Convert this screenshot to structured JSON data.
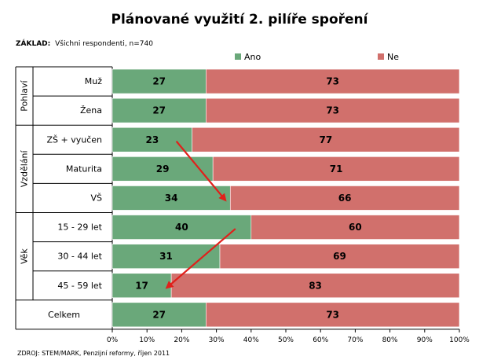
{
  "chart_data": {
    "type": "bar",
    "orientation": "horizontal",
    "stacked": "percent",
    "title": "Plánované využití 2. pilíře spoření",
    "basis": {
      "label": "ZÁKLAD:",
      "text": "Všichni respondenti, n=740"
    },
    "source": "ZDROJ: STEM/MARK, Penzijní reformy, říjen 2011",
    "categories": [
      "Muž",
      "Žena",
      "ZŠ + vyučen",
      "Maturita",
      "VŠ",
      "15 - 29 let",
      "30 - 44 let",
      "45 - 59 let",
      "Celkem"
    ],
    "groups": [
      {
        "label": "Pohlaví",
        "categories": [
          "Muž",
          "Žena"
        ]
      },
      {
        "label": "Vzdělání",
        "categories": [
          "ZŠ + vyučen",
          "Maturita",
          "VŠ"
        ]
      },
      {
        "label": "Věk",
        "categories": [
          "15 - 29 let",
          "30 - 44 let",
          "45 - 59 let"
        ]
      }
    ],
    "series": [
      {
        "name": "Ano",
        "values": [
          27,
          27,
          23,
          29,
          34,
          40,
          31,
          17,
          27
        ]
      },
      {
        "name": "Ne",
        "values": [
          73,
          73,
          77,
          71,
          66,
          60,
          69,
          83,
          73
        ]
      }
    ],
    "colors": {
      "Ano": "#6aa87a",
      "Ne": "#d1706c"
    },
    "xlim": [
      0,
      100
    ],
    "xticks": [
      "0%",
      "10%",
      "20%",
      "30%",
      "40%",
      "50%",
      "60%",
      "70%",
      "80%",
      "90%",
      "100%"
    ],
    "legend_position": "top",
    "grid": false,
    "annotations": [
      {
        "type": "arrow",
        "color": "#e0201b",
        "from_category": "ZŠ + vyučen",
        "from_value": 23,
        "to_category": "VŠ",
        "to_value": 34
      },
      {
        "type": "arrow",
        "color": "#e0201b",
        "from_category": "15 - 29 let",
        "from_value": 40,
        "to_category": "45 - 59 let",
        "to_value": 17
      }
    ]
  }
}
